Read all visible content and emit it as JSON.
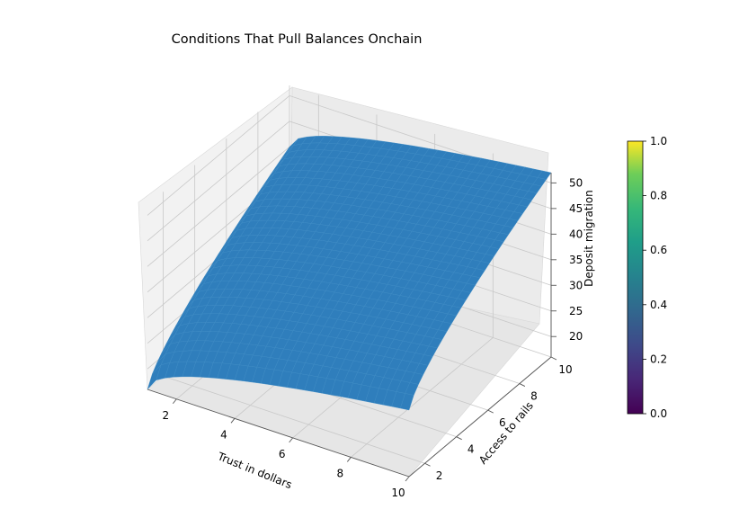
{
  "chart_data": {
    "type": "surface",
    "title": "Conditions That Pull Balances Onchain",
    "xlabel": "Trust in dollars",
    "ylabel": "Access to rails",
    "zlabel": "Deposit migration",
    "x_ticks": [
      "2",
      "4",
      "6",
      "8",
      "10"
    ],
    "y_ticks": [
      "2",
      "4",
      "6",
      "8",
      "10"
    ],
    "z_ticks": [
      "20",
      "25",
      "30",
      "35",
      "40",
      "45",
      "50"
    ],
    "xlim": [
      1,
      10
    ],
    "ylim": [
      1,
      10
    ],
    "zlim": [
      16,
      52
    ],
    "surface_corners": [
      {
        "x": 1,
        "y": 1,
        "z": 16
      },
      {
        "x": 10,
        "y": 1,
        "z": 29
      },
      {
        "x": 1,
        "y": 10,
        "z": 40
      },
      {
        "x": 10,
        "y": 10,
        "z": 52
      }
    ],
    "surface_color": "#2f7ebc",
    "grid": true,
    "colorbar": {
      "colormap": "viridis",
      "ticks": [
        "0.0",
        "0.2",
        "0.4",
        "0.6",
        "0.8",
        "1.0"
      ],
      "range": [
        0,
        1
      ]
    }
  }
}
